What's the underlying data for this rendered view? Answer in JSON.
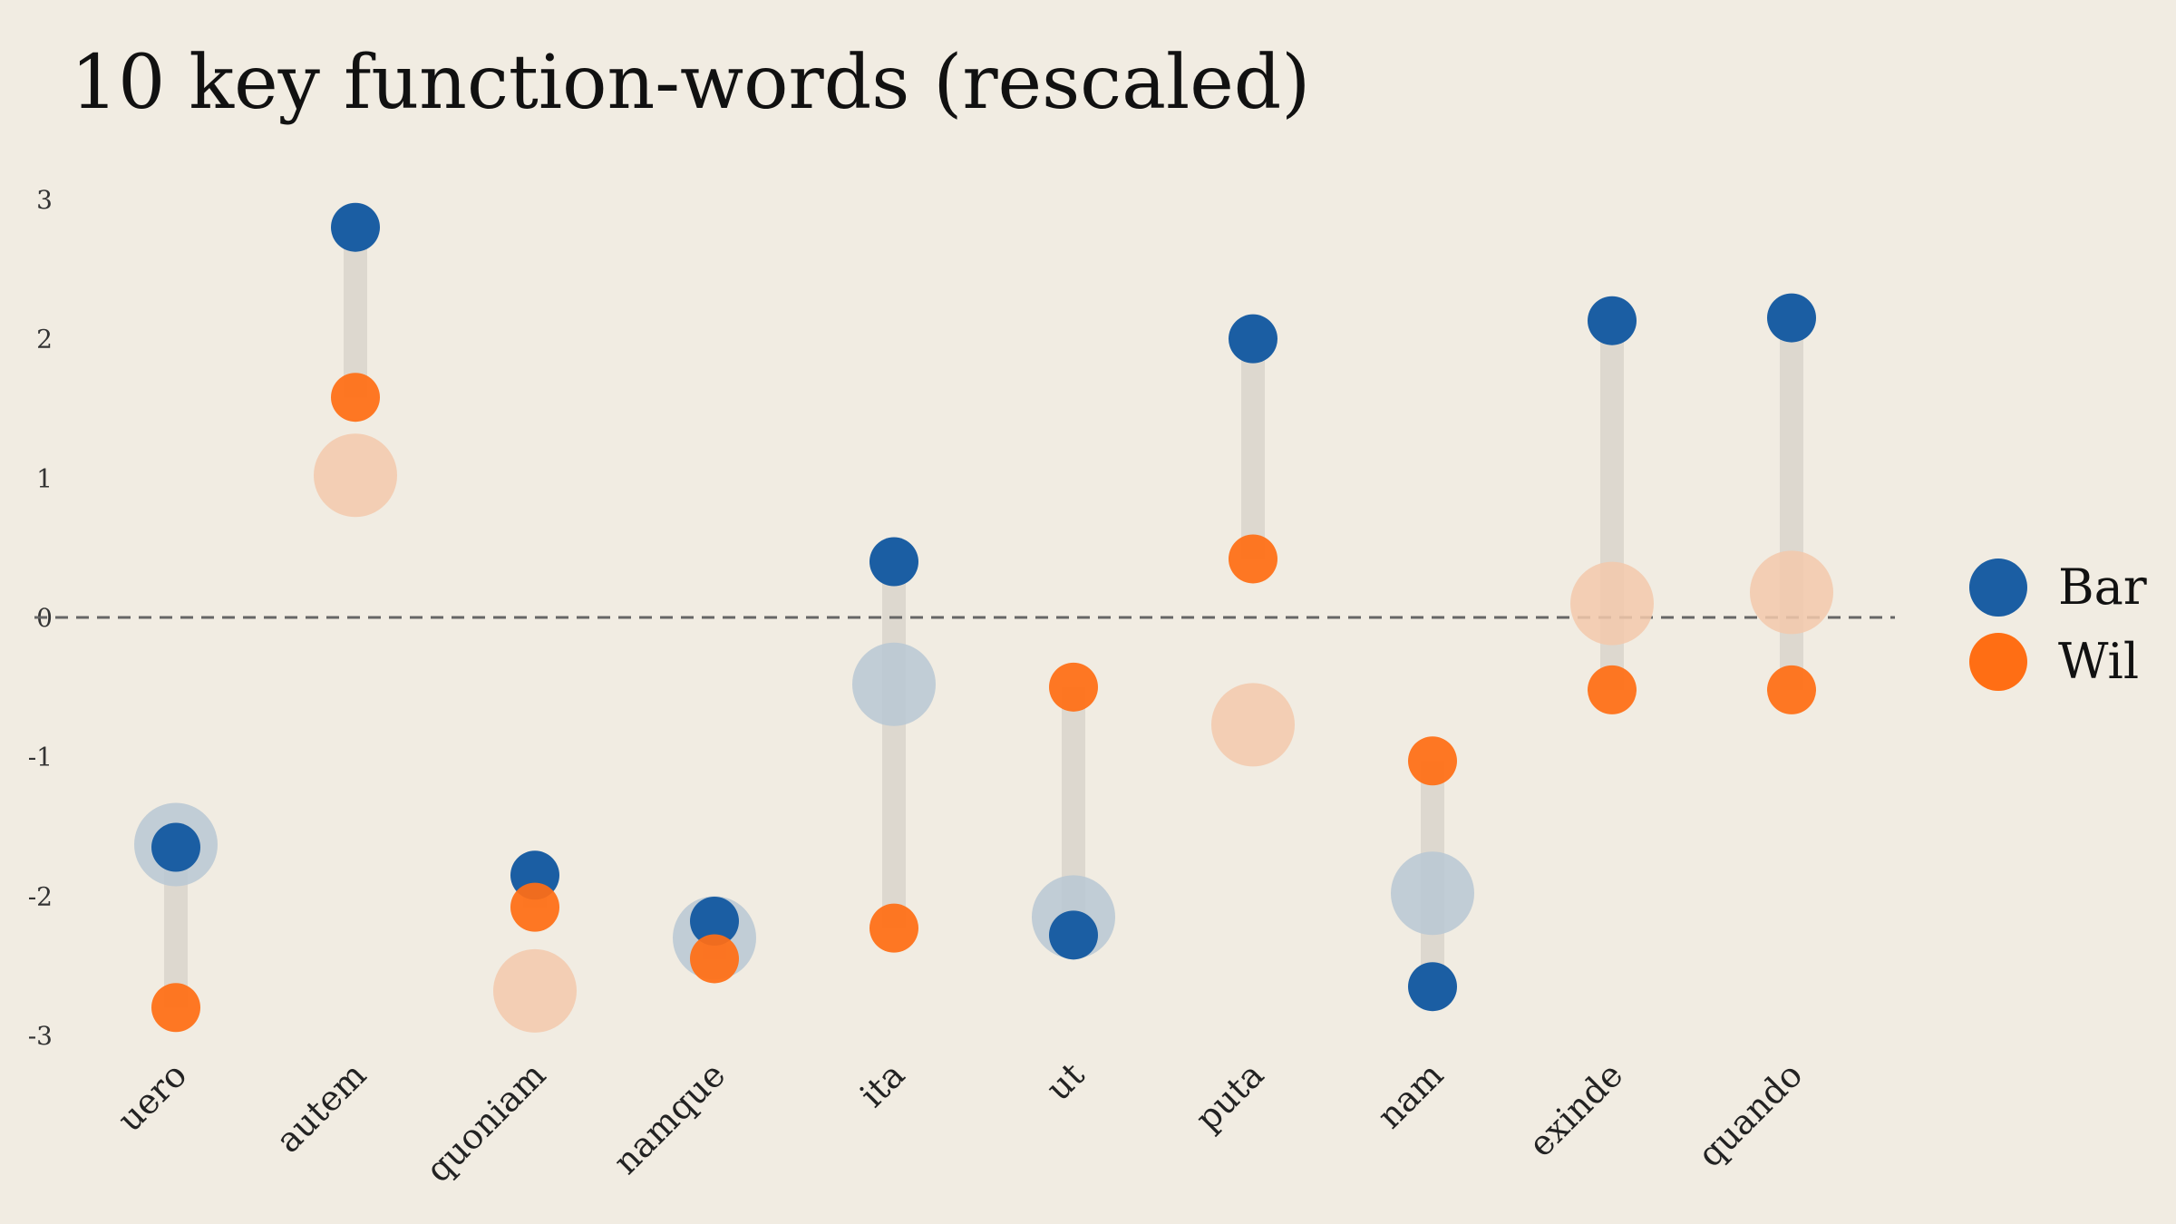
{
  "chart_data": {
    "type": "scatter",
    "title": "10 key function-words (rescaled)",
    "xlabel": "",
    "ylabel": "",
    "ylim": [
      -3,
      3
    ],
    "y_ticks": [
      "3",
      "2",
      "1",
      "0",
      "-1",
      "-2",
      "-3"
    ],
    "categories": [
      "uero",
      "autem",
      "quoniam",
      "namque",
      "ita",
      "ut",
      "puta",
      "nam",
      "exinde",
      "quando"
    ],
    "series": [
      {
        "name": "Bar",
        "color": "#1b5ea3",
        "values": [
          -1.65,
          2.8,
          -1.85,
          -2.18,
          0.4,
          -2.28,
          2.0,
          -2.65,
          2.13,
          2.15
        ]
      },
      {
        "name": "Wil",
        "color": "#ff6e14",
        "values": [
          -2.8,
          1.58,
          -2.08,
          -2.45,
          -2.23,
          -0.5,
          0.42,
          -1.03,
          -0.52,
          -0.52
        ]
      }
    ],
    "reference_markers": {
      "values": [
        -1.63,
        1.02,
        -2.68,
        -2.3,
        -0.48,
        -2.15,
        -0.77,
        -1.98,
        0.1,
        0.18
      ],
      "colors": [
        "#b9c8d4",
        "#f3c9ac",
        "#f3c9ac",
        "#b9c8d4",
        "#b9c8d4",
        "#b9c8d4",
        "#f3c9ac",
        "#b9c8d4",
        "#f3c9ac",
        "#f3c9ac"
      ]
    },
    "reference_line": {
      "y": 0,
      "style": "dashed"
    },
    "grid": false,
    "legend": {
      "position": "right",
      "entries": [
        "Bar",
        "Wil"
      ]
    }
  }
}
